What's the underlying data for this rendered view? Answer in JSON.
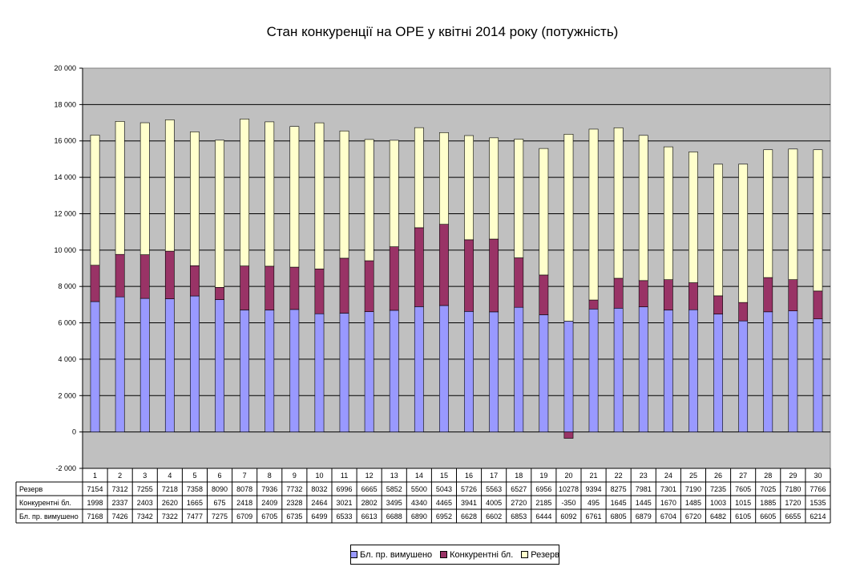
{
  "chart_data": {
    "type": "bar",
    "stacked": true,
    "title": "Стан конкуренції на ОРЕ  у квітні 2014 року (потужність)",
    "categories": [
      "1",
      "2",
      "3",
      "4",
      "5",
      "6",
      "7",
      "8",
      "9",
      "10",
      "11",
      "12",
      "13",
      "14",
      "15",
      "16",
      "17",
      "18",
      "19",
      "20",
      "21",
      "22",
      "23",
      "24",
      "25",
      "26",
      "27",
      "28",
      "29",
      "30"
    ],
    "ylim": [
      -2000,
      20000
    ],
    "yticks": [
      -2000,
      0,
      2000,
      4000,
      6000,
      8000,
      10000,
      12000,
      14000,
      16000,
      18000,
      20000
    ],
    "ytick_labels": [
      "-2 000",
      "0",
      "2 000",
      "4 000",
      "6 000",
      "8 000",
      "10 000",
      "12 000",
      "14 000",
      "16 000",
      "18 000",
      "20 000"
    ],
    "grid": true,
    "plot_background": "#c0c0c0",
    "legend_position": "bottom",
    "series": [
      {
        "name": "Бл. пр. вимушено",
        "color": "#9999ff",
        "values": [
          7168,
          7426,
          7342,
          7322,
          7477,
          7275,
          6709,
          6705,
          6735,
          6499,
          6533,
          6613,
          6688,
          6890,
          6952,
          6628,
          6602,
          6853,
          6444,
          6092,
          6761,
          6805,
          6879,
          6704,
          6720,
          6482,
          6105,
          6605,
          6655,
          6214
        ]
      },
      {
        "name": "Конкурентні бл.",
        "color": "#993366",
        "values": [
          1998,
          2337,
          2403,
          2620,
          1665,
          675,
          2418,
          2409,
          2328,
          2464,
          3021,
          2802,
          3495,
          4340,
          4465,
          3941,
          4005,
          2720,
          2185,
          -350,
          495,
          1645,
          1445,
          1670,
          1485,
          1003,
          1015,
          1885,
          1720,
          1535
        ]
      },
      {
        "name": "Резерв",
        "color": "#ffffcc",
        "values": [
          7154,
          7312,
          7255,
          7218,
          7358,
          8090,
          8078,
          7936,
          7732,
          8032,
          6996,
          6665,
          5852,
          5500,
          5043,
          5726,
          5563,
          6527,
          6956,
          10278,
          9394,
          8275,
          7981,
          7301,
          7190,
          7235,
          7605,
          7025,
          7180,
          7766
        ]
      }
    ],
    "table_rows": [
      "Резерв",
      "Конкурентні бл.",
      "Бл. пр. вимушено"
    ]
  }
}
